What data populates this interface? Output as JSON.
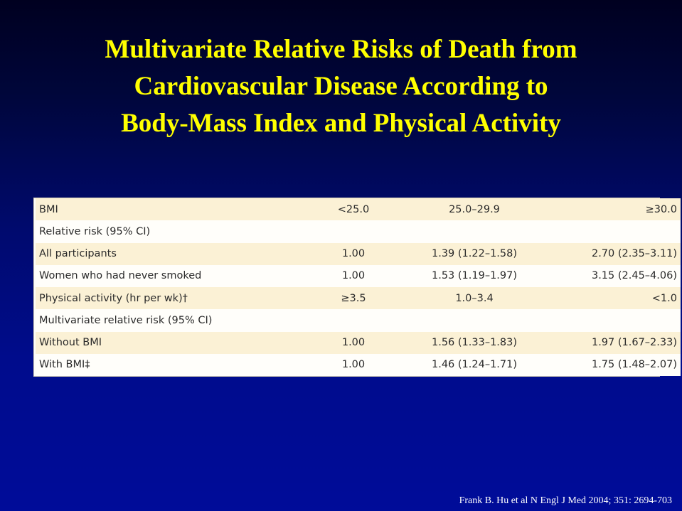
{
  "slide": {
    "title_lines": [
      "Multivariate Relative Risks of Death from",
      "Cardiovascular Disease According to",
      "Body-Mass Index and Physical Activity"
    ],
    "citation": "Frank B. Hu et al N Engl J Med 2004; 351: 2694-703"
  },
  "table": {
    "rows": [
      {
        "label": "BMI",
        "a": "<25.0",
        "b": "25.0–29.9",
        "c": "≥30.0"
      },
      {
        "label": "Relative risk (95% CI)",
        "a": "",
        "b": "",
        "c": ""
      },
      {
        "label": "All participants",
        "a": "1.00",
        "b": "1.39 (1.22–1.58)",
        "c": "2.70 (2.35–3.11)"
      },
      {
        "label": "Women who had never smoked",
        "a": "1.00",
        "b": "1.53 (1.19–1.97)",
        "c": "3.15 (2.45–4.06)"
      },
      {
        "label": "Physical activity (hr per wk)†",
        "a": "≥3.5",
        "b": "1.0–3.4",
        "c": "<1.0"
      },
      {
        "label": "Multivariate relative risk (95% CI)",
        "a": "",
        "b": "",
        "c": ""
      },
      {
        "label": "Without BMI",
        "a": "1.00",
        "b": "1.56 (1.33–1.83)",
        "c": "1.97 (1.67–2.33)"
      },
      {
        "label": "With BMI‡",
        "a": "1.00",
        "b": "1.46 (1.24–1.71)",
        "c": "1.75 (1.48–2.07)"
      }
    ]
  },
  "colors": {
    "title": "#ffff00",
    "background_top": "#000020",
    "background_bottom": "#000c99",
    "row_shade": "#fbf1d5",
    "row_plain": "#fffefa"
  }
}
